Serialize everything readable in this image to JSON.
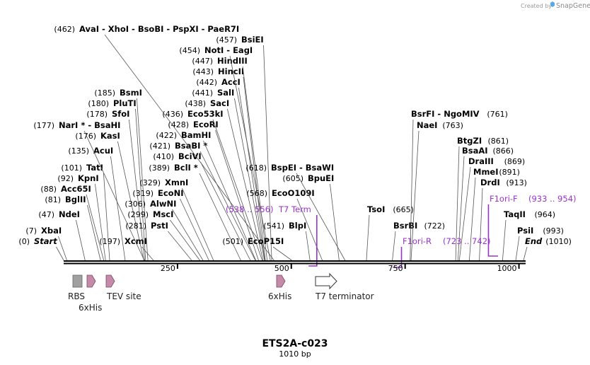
{
  "credit": {
    "prefix": "Created by",
    "brand": "SnapGene"
  },
  "sequence": {
    "name": "ETS2A-c023",
    "length_label": "1010 bp",
    "length": 1010
  },
  "axis": {
    "ticks": [
      {
        "value": 250,
        "label": "250"
      },
      {
        "value": 500,
        "label": "500"
      },
      {
        "value": 750,
        "label": "750"
      },
      {
        "value": 1000,
        "label": "1000"
      }
    ]
  },
  "sites": [
    {
      "pos": "(0)",
      "name": "Start",
      "style": "ital",
      "bp": 0
    },
    {
      "pos": "(7)",
      "name": "XbaI",
      "bp": 7
    },
    {
      "pos": "(47)",
      "name": "NdeI",
      "bp": 47
    },
    {
      "pos": "(81)",
      "name": "BglII",
      "bp": 81
    },
    {
      "pos": "(88)",
      "name": "Acc65I",
      "bp": 88
    },
    {
      "pos": "(92)",
      "name": "KpnI",
      "bp": 92
    },
    {
      "pos": "(101)",
      "name": "TatI",
      "bp": 101
    },
    {
      "pos": "(135)",
      "name": "AcuI",
      "bp": 135
    },
    {
      "pos": "(176)",
      "name": "KasI",
      "bp": 176
    },
    {
      "pos": "(177)",
      "name": "NarI * - BsaHI",
      "bp": 177
    },
    {
      "pos": "(178)",
      "name": "SfoI",
      "bp": 178
    },
    {
      "pos": "(180)",
      "name": "PluTI",
      "bp": 180
    },
    {
      "pos": "(185)",
      "name": "BsmI",
      "bp": 185
    },
    {
      "pos": "(197)",
      "name": "XcmI",
      "bp": 197
    },
    {
      "pos": "(281)",
      "name": "PstI",
      "bp": 281
    },
    {
      "pos": "(299)",
      "name": "MscI",
      "bp": 299
    },
    {
      "pos": "(306)",
      "name": "AlwNI",
      "bp": 306
    },
    {
      "pos": "(319)",
      "name": "EcoNI",
      "bp": 319
    },
    {
      "pos": "(329)",
      "name": "XmnI",
      "bp": 329
    },
    {
      "pos": "(389)",
      "name": "BclI *",
      "bp": 389
    },
    {
      "pos": "(410)",
      "name": "BciVI",
      "bp": 410
    },
    {
      "pos": "(421)",
      "name": "BsaBI *",
      "bp": 421
    },
    {
      "pos": "(422)",
      "name": "BamHI",
      "bp": 422
    },
    {
      "pos": "(428)",
      "name": "EcoRI",
      "bp": 428
    },
    {
      "pos": "(436)",
      "name": "Eco53kI",
      "bp": 436
    },
    {
      "pos": "(438)",
      "name": "SacI",
      "bp": 438
    },
    {
      "pos": "(441)",
      "name": "SalI",
      "bp": 441
    },
    {
      "pos": "(442)",
      "name": "AccI",
      "bp": 442
    },
    {
      "pos": "(443)",
      "name": "HincII",
      "bp": 443
    },
    {
      "pos": "(447)",
      "name": "HindIII",
      "bp": 447
    },
    {
      "pos": "(454)",
      "name": "NotI - EagI",
      "bp": 454
    },
    {
      "pos": "(457)",
      "name": "BsiEI",
      "bp": 457
    },
    {
      "pos": "(462)",
      "name": "AvaI - XhoI - BsoBI - PspXI - PaeR7I",
      "bp": 462
    },
    {
      "pos": "(501)",
      "name": "EcoP15I",
      "bp": 501
    },
    {
      "pos": "(541)",
      "name": "BlpI",
      "bp": 541
    },
    {
      "pos": "(568)",
      "name": "EcoO109I",
      "bp": 568
    },
    {
      "pos": "(605)",
      "name": "BpuEI",
      "bp": 605
    },
    {
      "pos": "(618)",
      "name": "BspEI - BsaWI",
      "bp": 618
    },
    {
      "pos": "(665)",
      "name": "TsoI",
      "bp": 665
    },
    {
      "pos": "(722)",
      "name": "BsrBI",
      "bp": 722
    },
    {
      "pos": "(761)",
      "name": "BsrFI - NgoMIV",
      "bp": 761
    },
    {
      "pos": "(763)",
      "name": "NaeI",
      "bp": 763
    },
    {
      "pos": "(861)",
      "name": "BtgZI",
      "bp": 861
    },
    {
      "pos": "(866)",
      "name": "BsaAI",
      "bp": 866
    },
    {
      "pos": "(869)",
      "name": "DraIII",
      "bp": 869
    },
    {
      "pos": "(891)",
      "name": "MmeI",
      "bp": 891
    },
    {
      "pos": "(913)",
      "name": "DrdI",
      "bp": 913
    },
    {
      "pos": "(964)",
      "name": "TaqII",
      "bp": 964
    },
    {
      "pos": "(993)",
      "name": "PsiI",
      "bp": 993
    },
    {
      "pos": "(1010)",
      "name": "End",
      "style": "ital",
      "bp": 1010
    }
  ],
  "primers": [
    {
      "name": "T7 Term",
      "range": "(538 .. 556)",
      "start": 538,
      "end": 556,
      "direction": "reverse"
    },
    {
      "name": "F1ori-R",
      "range": "(723 .. 742)",
      "start": 723,
      "end": 742,
      "direction": "reverse"
    },
    {
      "name": "F1ori-F",
      "range": "(933 .. 954)",
      "start": 933,
      "end": 954,
      "direction": "forward"
    }
  ],
  "features": [
    {
      "name": "RBS",
      "type": "box",
      "start": 7,
      "end": 15
    },
    {
      "name": "6xHis",
      "type": "arrow",
      "start": 18,
      "end": 35
    },
    {
      "name": "TEV site",
      "type": "arrow",
      "start": 47,
      "end": 68
    },
    {
      "name": "6xHis",
      "type": "arrow",
      "start": 462,
      "end": 480
    },
    {
      "name": "T7 terminator",
      "type": "arrow-outline",
      "start": 530,
      "end": 577
    }
  ],
  "colors": {
    "primer": "#9933cc",
    "feature_fill": "#c48aa8",
    "box_fill": "#a0a0a0",
    "backbone": "#000000",
    "site_line": "#555555",
    "brand": "#5aa9e6"
  }
}
